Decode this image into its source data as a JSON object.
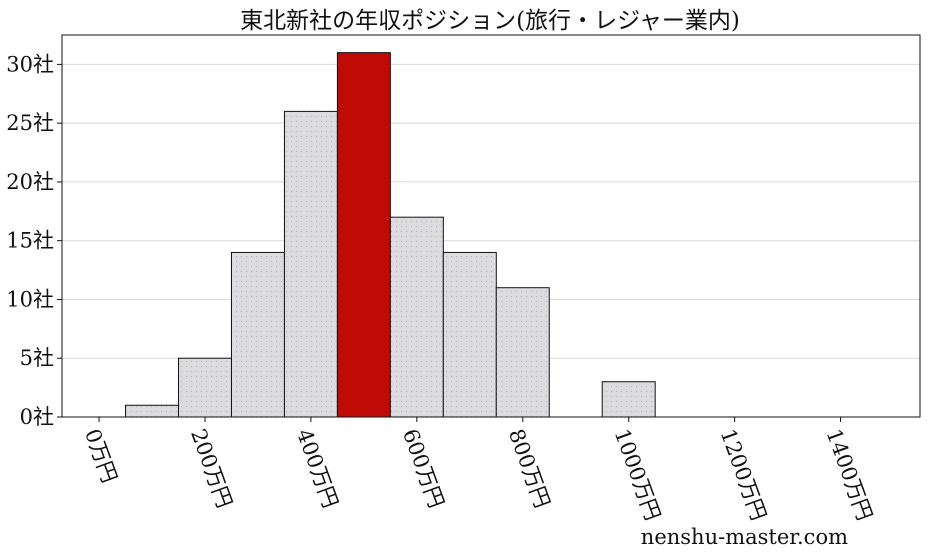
{
  "chart_data": {
    "type": "bar",
    "title": "東北新社の年収ポジション(旅行・レジャー業内)",
    "xlabel": "",
    "ylabel": "",
    "x_unit": "万円",
    "y_unit": "社",
    "bin_width": 100,
    "xlim": [
      -70,
      1550
    ],
    "ylim": [
      0,
      32.5
    ],
    "x_ticks": [
      0,
      200,
      400,
      600,
      800,
      1000,
      1200,
      1400
    ],
    "y_ticks": [
      0,
      5,
      10,
      15,
      20,
      25,
      30
    ],
    "x_tick_labels": [
      "0万円",
      "200万円",
      "400万円",
      "600万円",
      "800万円",
      "1000万円",
      "1200万円",
      "1400万円"
    ],
    "y_tick_labels": [
      "0社",
      "5社",
      "10社",
      "15社",
      "20社",
      "25社",
      "30社"
    ],
    "bins": [
      {
        "start": 50,
        "end": 150,
        "count": 1
      },
      {
        "start": 150,
        "end": 250,
        "count": 5
      },
      {
        "start": 250,
        "end": 350,
        "count": 14
      },
      {
        "start": 350,
        "end": 450,
        "count": 26
      },
      {
        "start": 450,
        "end": 550,
        "count": 31,
        "highlight": true
      },
      {
        "start": 550,
        "end": 650,
        "count": 17
      },
      {
        "start": 650,
        "end": 750,
        "count": 14
      },
      {
        "start": 750,
        "end": 850,
        "count": 11
      },
      {
        "start": 950,
        "end": 1050,
        "count": 3
      }
    ],
    "grid": "y",
    "legend": "none",
    "colors": {
      "bar": "#dcdcdf",
      "highlight": "#c00a06",
      "edge": "#111111",
      "grid": "#d8d8d8"
    }
  },
  "watermark": "nenshu-master.com"
}
